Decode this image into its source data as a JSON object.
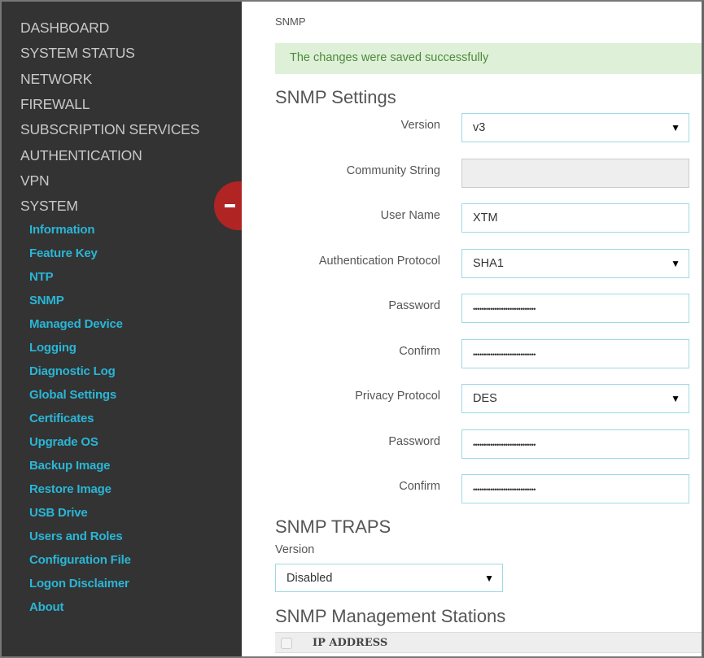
{
  "sidebar": {
    "top_items": [
      "DASHBOARD",
      "SYSTEM STATUS",
      "NETWORK",
      "FIREWALL",
      "SUBSCRIPTION SERVICES",
      "AUTHENTICATION",
      "VPN",
      "SYSTEM"
    ],
    "sub_items": [
      "Information",
      "Feature Key",
      "NTP",
      "SNMP",
      "Managed Device",
      "Logging",
      "Diagnostic Log",
      "Global Settings",
      "Certificates",
      "Upgrade OS",
      "Backup Image",
      "Restore Image",
      "USB Drive",
      "Users and Roles",
      "Configuration File",
      "Logon Disclaimer",
      "About"
    ],
    "collapse_icon": "minus-icon"
  },
  "breadcrumb": "SNMP",
  "alert": "The changes were saved successfully",
  "settings": {
    "title": "SNMP Settings",
    "fields": [
      {
        "label": "Version",
        "value": "v3",
        "type": "select"
      },
      {
        "label": "Community String",
        "value": "",
        "type": "disabled"
      },
      {
        "label": "User Name",
        "value": "XTM",
        "type": "text"
      },
      {
        "label": "Authentication Protocol",
        "value": "SHA1",
        "type": "select"
      },
      {
        "label": "Password",
        "value": "•••••••••••••••••••••••••••••",
        "type": "password"
      },
      {
        "label": "Confirm",
        "value": "•••••••••••••••••••••••••••••",
        "type": "password"
      },
      {
        "label": "Privacy Protocol",
        "value": "DES",
        "type": "select"
      },
      {
        "label": "Password",
        "value": "•••••••••••••••••••••••••••••",
        "type": "password"
      },
      {
        "label": "Confirm",
        "value": "•••••••••••••••••••••••••••••",
        "type": "password"
      }
    ]
  },
  "traps": {
    "title": "SNMP TRAPS",
    "version_label": "Version",
    "version_value": "Disabled"
  },
  "stations": {
    "title": "SNMP Management Stations",
    "columns": [
      "IP ADDRESS"
    ]
  },
  "colors": {
    "sidebar": "#333333",
    "accent": "#2ab6d6",
    "collapse": "#b02424",
    "alert_bg": "#dff0d8"
  }
}
